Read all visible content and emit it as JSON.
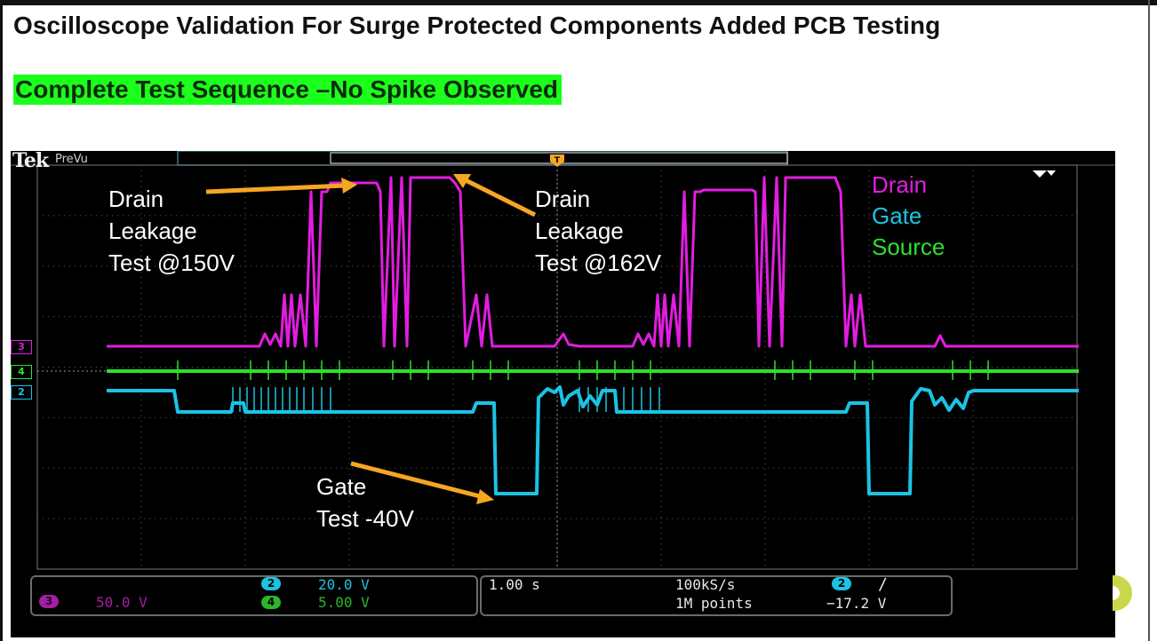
{
  "page": {
    "title": "Oscilloscope Validation For Surge Protected Components Added PCB Testing",
    "subtitle": "Complete Test Sequence –No Spike Observed",
    "subtitle_bg": "#1cff1c"
  },
  "scope": {
    "brand": "Tek",
    "mode": "PreVu",
    "trigger_marker": "T",
    "legend": [
      {
        "label": "Drain",
        "color": "#e21de0"
      },
      {
        "label": "Gate",
        "color": "#1bc3e4"
      },
      {
        "label": "Source",
        "color": "#2de02d"
      }
    ],
    "channel_markers": [
      {
        "num": "3",
        "color": "#e21de0"
      },
      {
        "num": "4",
        "color": "#2de02d"
      },
      {
        "num": "2",
        "color": "#1bc3e4"
      }
    ],
    "annotations": {
      "drain_150": "Drain\nLeakage\nTest @150V",
      "drain_162": "Drain\nLeakage\nTest @162V",
      "gate_test": "Gate\nTest -40V"
    },
    "arrow_color": "#f5a623",
    "status": {
      "ch3": {
        "num": "3",
        "scale": "50.0 V"
      },
      "ch2": {
        "num": "2",
        "scale": "20.0 V"
      },
      "ch4": {
        "num": "4",
        "scale": "5.00 V"
      },
      "timebase": "1.00 s",
      "sample_rate": "100kS/s",
      "record_length": "1M points",
      "trigger_channel": "2",
      "trigger_slope": "∕",
      "trigger_level": "−17.2 V"
    }
  }
}
